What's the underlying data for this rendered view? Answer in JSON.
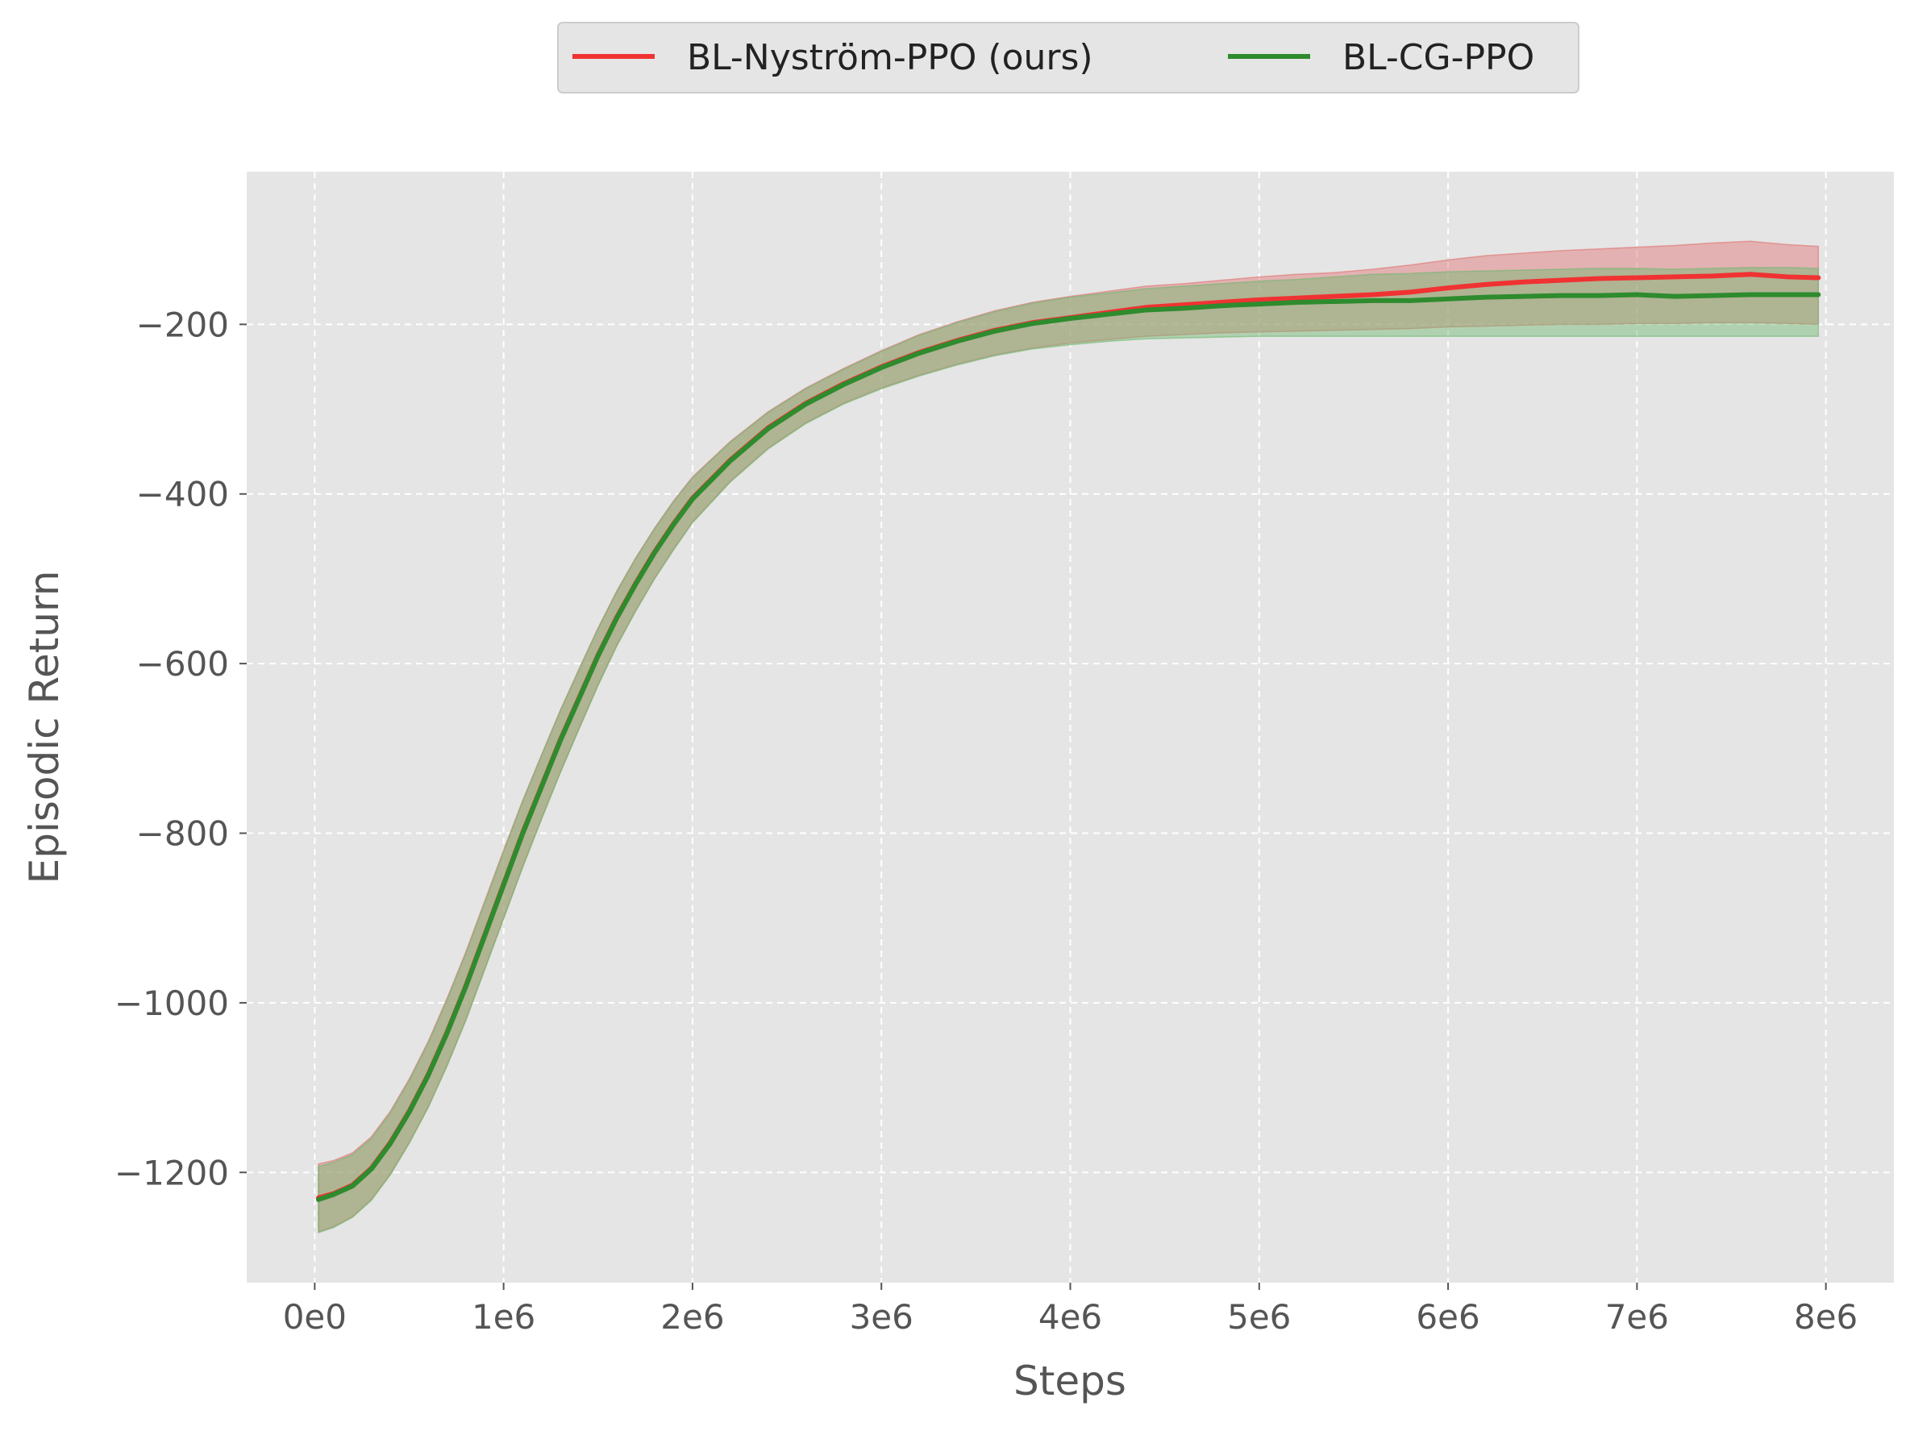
{
  "chart_data": {
    "type": "line",
    "title": "",
    "xlabel": "Steps",
    "ylabel": "Episodic Return",
    "xlim": [
      -360000,
      8360000
    ],
    "ylim": [
      -1330,
      -20
    ],
    "x_ticks": [
      {
        "value": 0,
        "label": "0e0"
      },
      {
        "value": 1000000,
        "label": "1e6"
      },
      {
        "value": 2000000,
        "label": "2e6"
      },
      {
        "value": 3000000,
        "label": "3e6"
      },
      {
        "value": 4000000,
        "label": "4e6"
      },
      {
        "value": 5000000,
        "label": "5e6"
      },
      {
        "value": 6000000,
        "label": "6e6"
      },
      {
        "value": 7000000,
        "label": "7e6"
      },
      {
        "value": 8000000,
        "label": "8e6"
      }
    ],
    "y_ticks": [
      {
        "value": -200,
        "label": "−200"
      },
      {
        "value": -400,
        "label": "−400"
      },
      {
        "value": -600,
        "label": "−600"
      },
      {
        "value": -800,
        "label": "−800"
      },
      {
        "value": -1000,
        "label": "−1000"
      },
      {
        "value": -1200,
        "label": "−1200"
      }
    ],
    "grid": true,
    "legend_position": "top-center",
    "x": [
      20000,
      100000,
      200000,
      300000,
      400000,
      500000,
      600000,
      700000,
      800000,
      900000,
      1000000,
      1100000,
      1200000,
      1300000,
      1400000,
      1500000,
      1600000,
      1700000,
      1800000,
      1900000,
      2000000,
      2200000,
      2400000,
      2600000,
      2800000,
      3000000,
      3200000,
      3400000,
      3600000,
      3800000,
      4000000,
      4200000,
      4400000,
      4600000,
      4800000,
      5000000,
      5200000,
      5400000,
      5600000,
      5800000,
      6000000,
      6200000,
      6400000,
      6600000,
      6800000,
      7000000,
      7200000,
      7400000,
      7600000,
      7800000,
      7960000
    ],
    "series": [
      {
        "name": "BL-Nyström-PPO (ours)",
        "color": "#f03232",
        "fill_color": "#e07070",
        "values": [
          -1230,
          -1225,
          -1215,
          -1195,
          -1165,
          -1128,
          -1085,
          -1035,
          -980,
          -920,
          -860,
          -800,
          -745,
          -690,
          -640,
          -590,
          -545,
          -505,
          -468,
          -435,
          -405,
          -360,
          -322,
          -293,
          -270,
          -250,
          -233,
          -219,
          -207,
          -198,
          -192,
          -186,
          -180,
          -177,
          -174,
          -171,
          -169,
          -167,
          -165,
          -162,
          -157,
          -153,
          -150,
          -148,
          -146,
          -145,
          -144,
          -143,
          -141,
          -144,
          -145
        ],
        "upper": [
          -1190,
          -1186,
          -1177,
          -1158,
          -1128,
          -1090,
          -1046,
          -995,
          -940,
          -880,
          -820,
          -762,
          -708,
          -655,
          -606,
          -558,
          -514,
          -475,
          -440,
          -408,
          -380,
          -338,
          -303,
          -275,
          -252,
          -231,
          -212,
          -197,
          -184,
          -174,
          -167,
          -161,
          -155,
          -152,
          -148,
          -144,
          -141,
          -139,
          -135,
          -130,
          -124,
          -119,
          -116,
          -113,
          -111,
          -109,
          -107,
          -104,
          -102,
          -106,
          -108
        ],
        "lower": [
          -1270,
          -1264,
          -1252,
          -1232,
          -1202,
          -1165,
          -1123,
          -1074,
          -1020,
          -960,
          -900,
          -840,
          -783,
          -728,
          -676,
          -625,
          -578,
          -537,
          -499,
          -465,
          -433,
          -385,
          -346,
          -316,
          -293,
          -275,
          -260,
          -247,
          -236,
          -228,
          -222,
          -218,
          -214,
          -212,
          -210,
          -209,
          -208,
          -207,
          -206,
          -205,
          -203,
          -202,
          -201,
          -200,
          -200,
          -199,
          -199,
          -198,
          -198,
          -199,
          -200
        ]
      },
      {
        "name": "BL-CG-PPO",
        "color": "#2e8b2e",
        "fill_color": "#6fb86f",
        "values": [
          -1232,
          -1226,
          -1216,
          -1196,
          -1166,
          -1129,
          -1086,
          -1036,
          -981,
          -921,
          -861,
          -801,
          -746,
          -691,
          -641,
          -591,
          -546,
          -506,
          -469,
          -436,
          -406,
          -361,
          -323,
          -294,
          -271,
          -251,
          -234,
          -220,
          -208,
          -199,
          -193,
          -188,
          -183,
          -181,
          -178,
          -176,
          -174,
          -173,
          -172,
          -172,
          -170,
          -168,
          -167,
          -166,
          -166,
          -165,
          -167,
          -166,
          -165,
          -165,
          -165
        ],
        "upper": [
          -1193,
          -1188,
          -1179,
          -1160,
          -1130,
          -1092,
          -1048,
          -997,
          -942,
          -882,
          -822,
          -763,
          -709,
          -656,
          -607,
          -559,
          -515,
          -476,
          -441,
          -409,
          -381,
          -339,
          -304,
          -276,
          -253,
          -232,
          -213,
          -198,
          -185,
          -175,
          -168,
          -163,
          -158,
          -155,
          -152,
          -149,
          -147,
          -144,
          -141,
          -140,
          -138,
          -137,
          -136,
          -135,
          -134,
          -134,
          -135,
          -134,
          -133,
          -133,
          -134
        ],
        "lower": [
          -1271,
          -1265,
          -1253,
          -1233,
          -1203,
          -1166,
          -1124,
          -1075,
          -1021,
          -961,
          -901,
          -841,
          -784,
          -729,
          -677,
          -626,
          -579,
          -538,
          -500,
          -466,
          -434,
          -386,
          -347,
          -317,
          -294,
          -276,
          -261,
          -248,
          -237,
          -229,
          -224,
          -220,
          -217,
          -216,
          -215,
          -214,
          -214,
          -214,
          -214,
          -214,
          -214,
          -214,
          -214,
          -214,
          -214,
          -214,
          -214,
          -214,
          -214,
          -214,
          -214
        ]
      }
    ]
  }
}
